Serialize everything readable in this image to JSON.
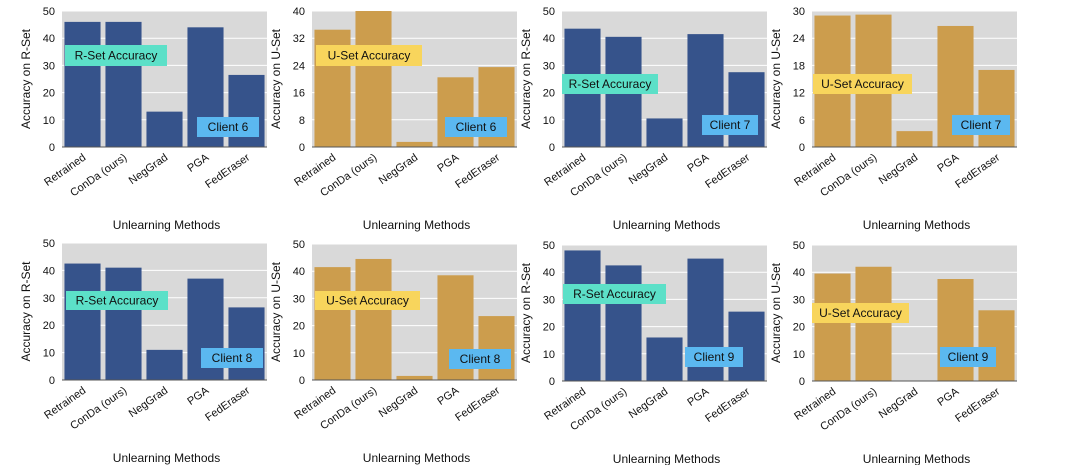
{
  "chart_data": [
    {
      "type": "bar",
      "xlabel": "Unlearning Methods",
      "ylabel": "Accuracy on R-Set",
      "ylim": [
        0,
        50
      ],
      "yticks": [
        0,
        10,
        20,
        30,
        40,
        50
      ],
      "categories": [
        "Retrained",
        "ConDa (ours)",
        "NegGrad",
        "PGA",
        "FedEraser"
      ],
      "values": [
        46,
        46,
        13,
        44,
        26.5
      ],
      "color": "#36538B",
      "annotation": "R-Set Accuracy",
      "annotation_color": "#5CE0C8",
      "client": "Client 6"
    },
    {
      "type": "bar",
      "xlabel": "Unlearning Methods",
      "ylabel": "Accuracy on U-Set",
      "ylim": [
        0,
        40
      ],
      "yticks": [
        0,
        8,
        16,
        24,
        32,
        40
      ],
      "categories": [
        "Retrained",
        "ConDa (ours)",
        "NegGrad",
        "PGA",
        "FedEraser"
      ],
      "values": [
        34.5,
        40,
        1.5,
        20.5,
        23.5
      ],
      "color": "#CC9D4D",
      "annotation": "U-Set Accuracy",
      "annotation_color": "#F8D55C",
      "client": "Client 6"
    },
    {
      "type": "bar",
      "xlabel": "Unlearning Methods",
      "ylabel": "Accuracy on R-Set",
      "ylim": [
        0,
        50
      ],
      "yticks": [
        0,
        10,
        20,
        30,
        40,
        50
      ],
      "categories": [
        "Retrained",
        "ConDa (ours)",
        "NegGrad",
        "PGA",
        "FedEraser"
      ],
      "values": [
        43.5,
        40.5,
        10.5,
        41.5,
        27.5
      ],
      "color": "#36538B",
      "annotation": "R-Set Accuracy",
      "annotation_color": "#5CE0C8",
      "client": "Client 7"
    },
    {
      "type": "bar",
      "xlabel": "Unlearning Methods",
      "ylabel": "Accuracy on U-Set",
      "ylim": [
        0,
        30
      ],
      "yticks": [
        0,
        6,
        12,
        18,
        24,
        30
      ],
      "categories": [
        "Retrained",
        "ConDa (ours)",
        "NegGrad",
        "PGA",
        "FedEraser"
      ],
      "values": [
        29,
        29.2,
        3.5,
        26.7,
        17
      ],
      "color": "#CC9D4D",
      "annotation": "U-Set Accuracy",
      "annotation_color": "#F8D55C",
      "client": "Client 7"
    },
    {
      "type": "bar",
      "xlabel": "Unlearning Methods",
      "ylabel": "Accuracy on R-Set",
      "ylim": [
        0,
        50
      ],
      "yticks": [
        0,
        10,
        20,
        30,
        40,
        50
      ],
      "categories": [
        "Retrained",
        "ConDa (ours)",
        "NegGrad",
        "PGA",
        "FedEraser"
      ],
      "values": [
        42.5,
        41,
        11,
        37,
        26.5
      ],
      "color": "#36538B",
      "annotation": "R-Set Accuracy",
      "annotation_color": "#5CE0C8",
      "client": "Client 8"
    },
    {
      "type": "bar",
      "xlabel": "Unlearning Methods",
      "ylabel": "Accuracy on U-Set",
      "ylim": [
        0,
        50
      ],
      "yticks": [
        0,
        10,
        20,
        30,
        40,
        50
      ],
      "categories": [
        "Retrained",
        "ConDa (ours)",
        "NegGrad",
        "PGA",
        "FedEraser"
      ],
      "values": [
        41.5,
        44.5,
        1.5,
        38.5,
        23.5
      ],
      "color": "#CC9D4D",
      "annotation": "U-Set Accuracy",
      "annotation_color": "#F8D55C",
      "client": "Client 8"
    },
    {
      "type": "bar",
      "xlabel": "Unlearning Methods",
      "ylabel": "Accuracy on R-Set",
      "ylim": [
        0,
        50
      ],
      "yticks": [
        0,
        10,
        20,
        30,
        40,
        50
      ],
      "categories": [
        "Retrained",
        "ConDa (ours)",
        "NegGrad",
        "PGA",
        "FedEraser"
      ],
      "values": [
        48,
        42.5,
        16,
        45,
        25.5
      ],
      "color": "#36538B",
      "annotation": "R-Set Accuracy",
      "annotation_color": "#5CE0C8",
      "client": "Client 9"
    },
    {
      "type": "bar",
      "xlabel": "Unlearning Methods",
      "ylabel": "Accuracy on U-Set",
      "ylim": [
        0,
        50
      ],
      "yticks": [
        0,
        10,
        20,
        30,
        40,
        50
      ],
      "categories": [
        "Retrained",
        "ConDa (ours)",
        "NegGrad",
        "PGA",
        "FedEraser"
      ],
      "values": [
        39.5,
        42,
        0,
        37.5,
        26
      ],
      "color": "#CC9D4D",
      "annotation": "U-Set Accuracy",
      "annotation_color": "#F8D55C",
      "client": "Client 9"
    }
  ]
}
